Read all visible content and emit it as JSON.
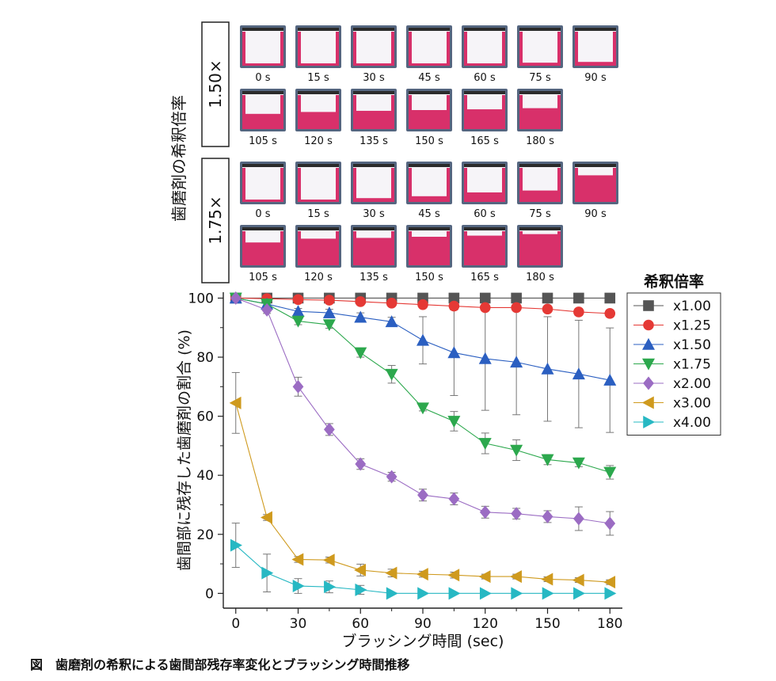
{
  "photo_panel": {
    "ylabel": "歯磨剤の希釈倍率",
    "groups": [
      {
        "label": "1.50×",
        "rows": [
          [
            "0 s",
            "15 s",
            "30 s",
            "45 s",
            "60 s",
            "75 s",
            "90 s"
          ],
          [
            "105 s",
            "120 s",
            "135 s",
            "150 s",
            "165 s",
            "180 s"
          ]
        ],
        "coverage": [
          [
            0.0,
            0.02,
            0.03,
            0.04,
            0.06,
            0.08,
            0.1
          ],
          [
            0.4,
            0.45,
            0.48,
            0.5,
            0.52,
            0.55
          ]
        ]
      },
      {
        "label": "1.75×",
        "rows": [
          [
            "0 s",
            "15 s",
            "30 s",
            "45 s",
            "60 s",
            "75 s",
            "90 s"
          ],
          [
            "105 s",
            "120 s",
            "135 s",
            "150 s",
            "165 s",
            "180 s"
          ]
        ],
        "coverage": [
          [
            0.0,
            0.05,
            0.1,
            0.15,
            0.25,
            0.3,
            0.7
          ],
          [
            0.6,
            0.7,
            0.72,
            0.75,
            0.78,
            0.82
          ]
        ]
      }
    ],
    "colors": {
      "pink": "#d8306a",
      "frame": "#556680",
      "white": "#f6f4f8"
    }
  },
  "chart_data": {
    "type": "line",
    "xlabel": "ブラッシング時間 (sec)",
    "ylabel": "歯間部に残存した歯磨剤の割合 (%)",
    "x": [
      0,
      15,
      30,
      45,
      60,
      75,
      90,
      105,
      120,
      135,
      150,
      165,
      180
    ],
    "xticks": [
      0,
      30,
      60,
      90,
      120,
      150,
      180
    ],
    "yticks": [
      0,
      20,
      40,
      60,
      80,
      100
    ],
    "xlim": [
      -6,
      186
    ],
    "ylim": [
      -5,
      102
    ],
    "legend_title": "希釈倍率",
    "legend_position": "right",
    "series": [
      {
        "name": "x1.00",
        "marker": "square",
        "color": "#555555",
        "values": [
          100,
          100,
          100,
          100,
          100,
          100,
          100,
          100,
          100,
          100,
          100,
          100,
          100
        ],
        "errors": [
          0,
          0,
          0,
          0,
          0,
          0,
          0,
          0,
          0,
          0,
          0,
          0,
          0
        ]
      },
      {
        "name": "x1.25",
        "marker": "circle",
        "color": "#e53935",
        "values": [
          100,
          99.8,
          99.5,
          99.3,
          98.8,
          98.3,
          97.8,
          97.3,
          96.8,
          96.8,
          96.3,
          95.3,
          94.8
        ],
        "errors": [
          0,
          0.3,
          0.5,
          0.5,
          0.7,
          0.7,
          0.8,
          0.9,
          1,
          1,
          1,
          1.2,
          1.2
        ]
      },
      {
        "name": "x1.50",
        "marker": "triangle-up",
        "color": "#2b5fc1",
        "values": [
          100,
          98,
          95.5,
          95,
          93.5,
          92,
          85.7,
          81.5,
          79.5,
          78.3,
          76,
          74.3,
          72.2
        ],
        "errors": [
          0,
          1,
          1,
          1.2,
          1.5,
          1.5,
          8,
          14.5,
          17.5,
          17.8,
          17.7,
          18.2,
          17.7
        ]
      },
      {
        "name": "x1.75",
        "marker": "triangle-down",
        "color": "#2ca84d",
        "values": [
          100,
          98,
          92.2,
          91,
          81.5,
          74.2,
          62.8,
          58.3,
          50.8,
          48.5,
          45.3,
          44.2,
          41
        ],
        "errors": [
          0,
          1,
          1.2,
          1.2,
          1.5,
          3,
          1,
          3.3,
          3.5,
          3.5,
          1.7,
          1.3,
          2.3
        ]
      },
      {
        "name": "x2.00",
        "marker": "diamond",
        "color": "#9b6cc3",
        "values": [
          100,
          96,
          70,
          55.5,
          43.8,
          39.5,
          33.3,
          32,
          27.5,
          27,
          26,
          25.3,
          23.7
        ],
        "errors": [
          0,
          1.2,
          3.2,
          2,
          1.8,
          1.5,
          2,
          2,
          2,
          1.8,
          2,
          4,
          4
        ]
      },
      {
        "name": "x3.00",
        "marker": "triangle-left",
        "color": "#cf9a1e",
        "values": [
          64.5,
          25.7,
          11.5,
          11.3,
          7.9,
          6.9,
          6.5,
          6.2,
          5.7,
          5.7,
          4.8,
          4.5,
          3.8
        ],
        "errors": [
          10.3,
          1,
          1,
          1,
          2,
          1.3,
          1,
          1,
          0.8,
          0.8,
          0.8,
          0.8,
          0.8
        ]
      },
      {
        "name": "x4.00",
        "marker": "triangle-right",
        "color": "#27b8c3",
        "values": [
          16.3,
          6.9,
          2.5,
          2.2,
          1.2,
          0,
          0,
          0,
          0,
          0,
          0,
          0,
          0
        ],
        "errors": [
          7.5,
          6.4,
          2.5,
          2,
          1.5,
          0,
          0,
          0,
          0,
          0,
          0,
          0,
          0
        ]
      }
    ]
  },
  "caption": "図　歯磨剤の希釈による歯間部残存率変化とブラッシング時間推移"
}
